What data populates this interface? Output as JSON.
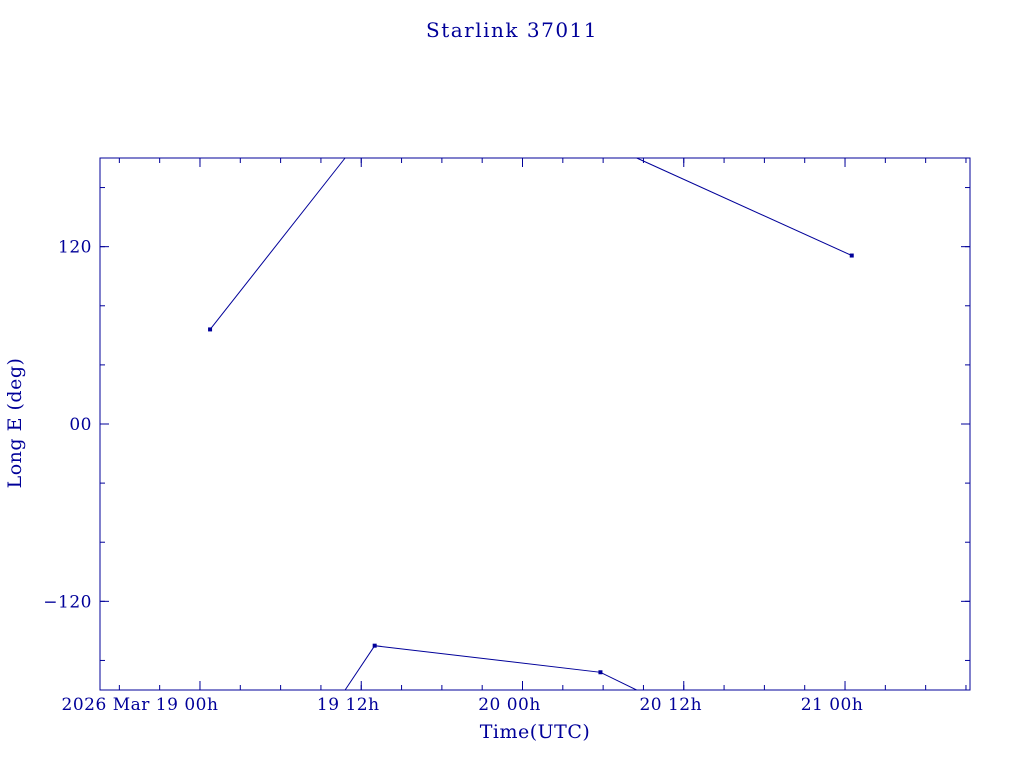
{
  "page": {
    "background": "#ffffff"
  },
  "chart_data": {
    "type": "line",
    "title": "Starlink 37011",
    "xlabel": "Time(UTC)",
    "ylabel": "Long E (deg)",
    "color": "#000099",
    "xlim_hours": [
      -7.44,
      57.3
    ],
    "ylim": [
      -180,
      180
    ],
    "x_axis_epoch": "2026 Mar 19 00h UTC",
    "x_ticks": [
      {
        "hours": 0,
        "label": "2026 Mar 19  00h",
        "dx": -60
      },
      {
        "hours": 12,
        "label": "19 12h",
        "dx": -13
      },
      {
        "hours": 24,
        "label": "20 00h",
        "dx": -13
      },
      {
        "hours": 36,
        "label": "20 12h",
        "dx": -13
      },
      {
        "hours": 48,
        "label": "21 00h",
        "dx": -13
      }
    ],
    "x_minor_step_hours": 3,
    "y_ticks": [
      {
        "value": 120,
        "label": "120"
      },
      {
        "value": 0,
        "label": "00"
      },
      {
        "value": -120,
        "label": "−120"
      }
    ],
    "y_minor_step": 40,
    "series": [
      {
        "name": "longitude-east-track",
        "segments": [
          {
            "points": [
              [
                0.75,
                64
              ],
              [
                10.8,
                180
              ]
            ]
          },
          {
            "points": [
              [
                10.8,
                -180
              ],
              [
                13.0,
                -150
              ],
              [
                29.8,
                -168
              ],
              [
                32.5,
                -180
              ]
            ]
          },
          {
            "points": [
              [
                32.5,
                180
              ],
              [
                48.5,
                114
              ]
            ]
          }
        ],
        "markers": [
          [
            0.75,
            64
          ],
          [
            13.0,
            -150
          ],
          [
            29.8,
            -168
          ],
          [
            48.5,
            114
          ]
        ]
      }
    ],
    "legend": null,
    "grid": false
  }
}
